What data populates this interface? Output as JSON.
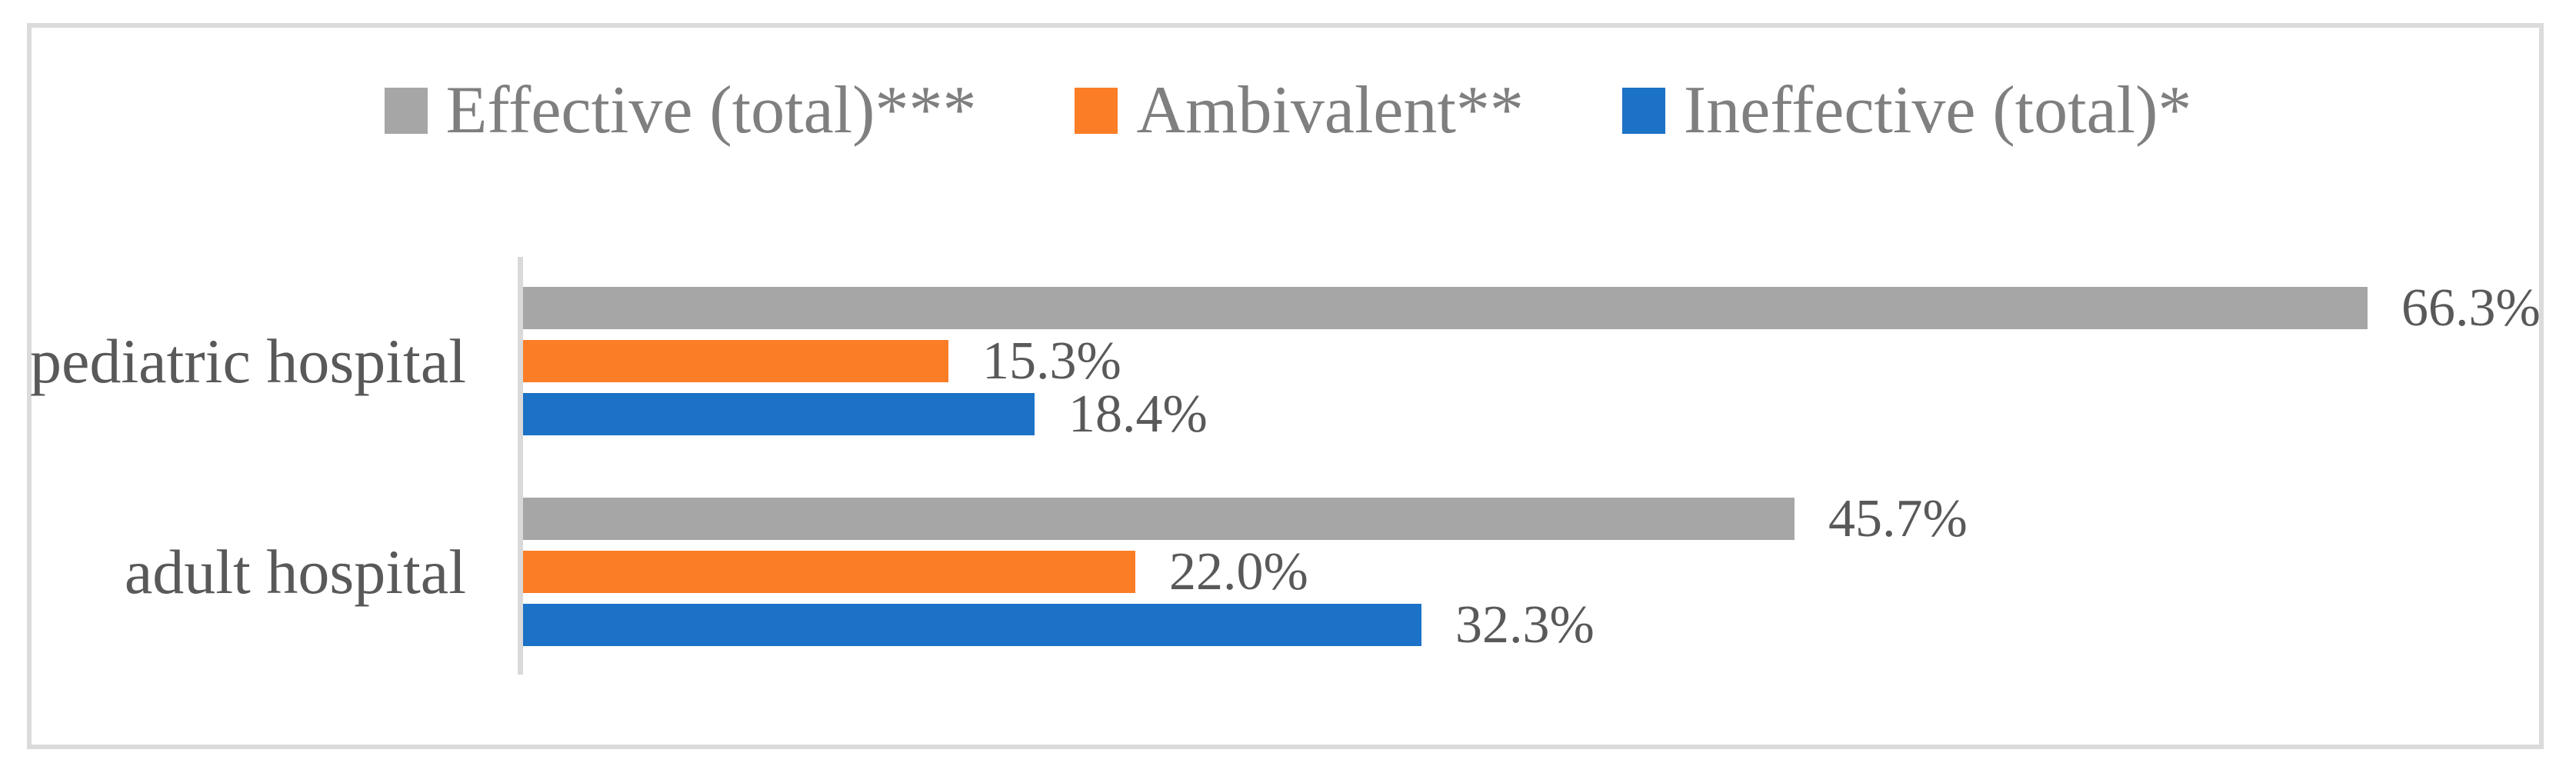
{
  "chart_data": {
    "type": "bar",
    "orientation": "horizontal",
    "title": "",
    "categories": [
      "pediatric hospital",
      "adult hospital"
    ],
    "series": [
      {
        "name": "Effective (total)***",
        "color": "#A6A6A6",
        "values": [
          66.3,
          45.7
        ],
        "labels": [
          "66.3%",
          "45.7%"
        ]
      },
      {
        "name": "Ambivalent**",
        "color": "#FB7D26",
        "values": [
          15.3,
          22.0
        ],
        "labels": [
          "15.3%",
          "22.0%"
        ]
      },
      {
        "name": "Ineffective (total)*",
        "color": "#1B72C6",
        "values": [
          18.4,
          32.3
        ],
        "labels": [
          "18.4%",
          "32.3%"
        ]
      }
    ],
    "xlim": [
      0,
      72.5
    ],
    "grid": false,
    "legend_position": "top",
    "value_label_format": "0.0%"
  },
  "colors": {
    "background": "#FFFFFF",
    "frame_border": "#DBDBDB",
    "axis_line": "#D9D9D9",
    "legend_text": "#7F7F7F",
    "label_text": "#595959"
  }
}
